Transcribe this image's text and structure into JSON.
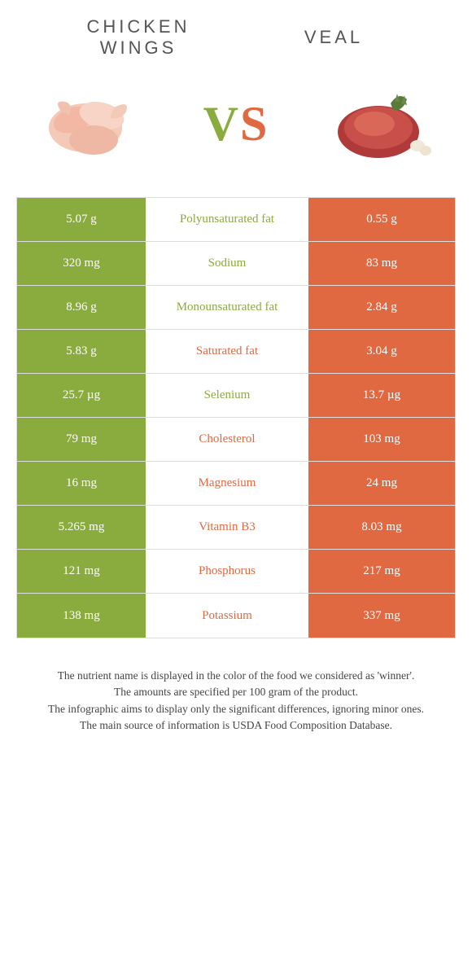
{
  "header": {
    "left_line1": "Chicken",
    "left_line2": "Wings",
    "right": "Veal"
  },
  "vs": {
    "v": "V",
    "s": "S"
  },
  "colors": {
    "green": "#8aab3d",
    "orange": "#e06942",
    "border": "#dddddd",
    "text": "#333333",
    "white": "#ffffff"
  },
  "rows": [
    {
      "left": "5.07 g",
      "label": "Polyunsaturated fat",
      "right": "0.55 g",
      "winner": "green"
    },
    {
      "left": "320 mg",
      "label": "Sodium",
      "right": "83 mg",
      "winner": "green"
    },
    {
      "left": "8.96 g",
      "label": "Monounsaturated fat",
      "right": "2.84 g",
      "winner": "green"
    },
    {
      "left": "5.83 g",
      "label": "Saturated fat",
      "right": "3.04 g",
      "winner": "orange"
    },
    {
      "left": "25.7 µg",
      "label": "Selenium",
      "right": "13.7 µg",
      "winner": "green"
    },
    {
      "left": "79 mg",
      "label": "Cholesterol",
      "right": "103 mg",
      "winner": "orange"
    },
    {
      "left": "16 mg",
      "label": "Magnesium",
      "right": "24 mg",
      "winner": "orange"
    },
    {
      "left": "5.265 mg",
      "label": "Vitamin B3",
      "right": "8.03 mg",
      "winner": "orange"
    },
    {
      "left": "121 mg",
      "label": "Phosphorus",
      "right": "217 mg",
      "winner": "orange"
    },
    {
      "left": "138 mg",
      "label": "Potassium",
      "right": "337 mg",
      "winner": "orange"
    }
  ],
  "footer": {
    "line1": "The nutrient name is displayed in the color of the food we considered as 'winner'.",
    "line2": "The amounts are specified per 100 gram of the product.",
    "line3": "The infographic aims to display only the significant differences, ignoring minor ones.",
    "line4": "The main source of information is USDA Food Composition Database."
  }
}
